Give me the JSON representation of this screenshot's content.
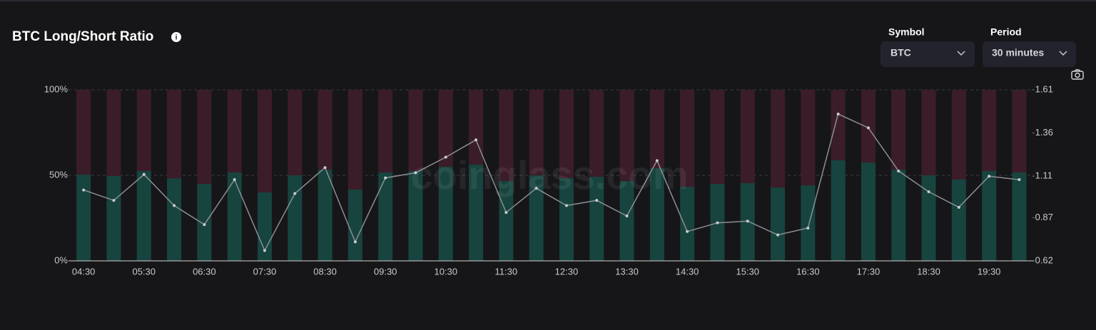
{
  "header": {
    "title": "BTC Long/Short Ratio",
    "symbol_label": "Symbol",
    "symbol_value": "BTC",
    "period_label": "Period",
    "period_value": "30 minutes"
  },
  "watermark": "coinglass.com",
  "chart_data": {
    "type": "bar",
    "stacked": true,
    "categories": [
      "04:30",
      null,
      "05:30",
      null,
      "06:30",
      null,
      "07:30",
      null,
      "08:30",
      null,
      "09:30",
      null,
      "10:30",
      null,
      "11:30",
      null,
      "12:30",
      null,
      "13:30",
      null,
      "14:30",
      null,
      "15:30",
      null,
      "16:30",
      null,
      "17:30",
      null,
      "18:30",
      null,
      "19:30",
      null
    ],
    "ylim": [
      0,
      100
    ],
    "yticks": [
      {
        "value": 0,
        "label": "0%"
      },
      {
        "value": 50,
        "label": "50%"
      },
      {
        "value": 100,
        "label": "100%"
      }
    ],
    "y2lim": [
      0.62,
      1.61
    ],
    "y2ticks": [
      0.62,
      0.87,
      1.11,
      1.36,
      1.61
    ],
    "grid": true,
    "series": [
      {
        "type": "bar",
        "color": "#17443f",
        "values": [
          50.4,
          49.6,
          52.5,
          48.3,
          45.0,
          51.7,
          40.0,
          50.0,
          53.3,
          41.7,
          51.7,
          52.5,
          55.0,
          56.3,
          46.7,
          50.0,
          48.3,
          49.2,
          46.7,
          54.2,
          43.3,
          45.0,
          45.4,
          42.9,
          44.2,
          58.8,
          57.5,
          53.3,
          50.0,
          47.5,
          52.5,
          51.7
        ]
      },
      {
        "type": "bar",
        "color": "#3b1d29",
        "values": [
          49.6,
          50.4,
          47.5,
          51.7,
          55.0,
          48.3,
          60.0,
          50.0,
          46.7,
          58.3,
          48.3,
          47.5,
          45.0,
          43.7,
          53.3,
          50.0,
          51.7,
          50.8,
          53.3,
          45.8,
          56.7,
          55.0,
          54.6,
          57.1,
          55.8,
          41.2,
          42.5,
          46.7,
          50.0,
          52.5,
          47.5,
          48.3
        ]
      },
      {
        "type": "line",
        "axis": "y2",
        "color": "#8b8e94",
        "values": [
          1.03,
          0.97,
          1.12,
          0.94,
          0.83,
          1.09,
          0.68,
          1.01,
          1.16,
          0.73,
          1.1,
          1.13,
          1.22,
          1.32,
          0.9,
          1.04,
          0.94,
          0.97,
          0.88,
          1.2,
          0.79,
          0.84,
          0.85,
          0.77,
          0.81,
          1.47,
          1.39,
          1.14,
          1.02,
          0.93,
          1.11,
          1.09
        ]
      }
    ]
  }
}
